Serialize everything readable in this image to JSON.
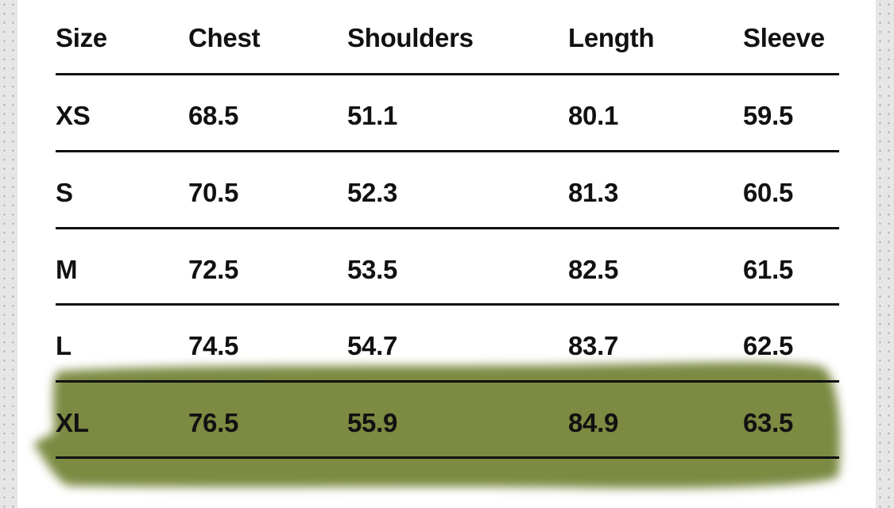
{
  "colors": {
    "highlight": "#7b8a42",
    "text": "#111111"
  },
  "headers": [
    "Size",
    "Chest",
    "Shoulders",
    "Length",
    "Sleeve"
  ],
  "rows": [
    [
      "XS",
      "68.5",
      "51.1",
      "80.1",
      "59.5"
    ],
    [
      "S",
      "70.5",
      "52.3",
      "81.3",
      "60.5"
    ],
    [
      "M",
      "72.5",
      "53.5",
      "82.5",
      "61.5"
    ],
    [
      "L",
      "74.5",
      "54.7",
      "83.7",
      "62.5"
    ],
    [
      "XL",
      "76.5",
      "55.9",
      "84.9",
      "63.5"
    ]
  ],
  "highlighted_row": "XL"
}
